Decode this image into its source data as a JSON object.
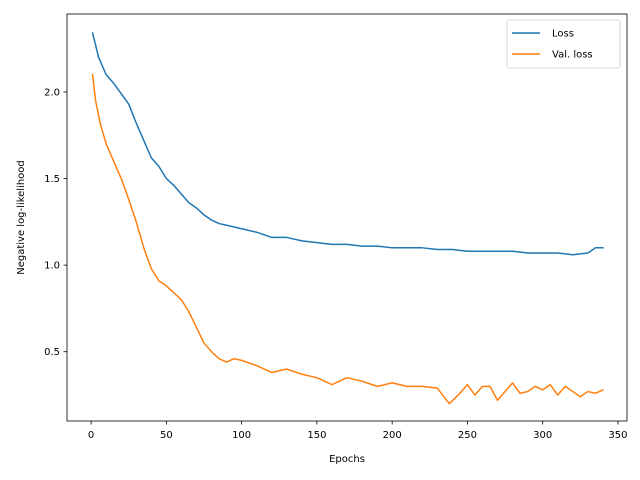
{
  "chart_data": {
    "type": "line",
    "title": "",
    "xlabel": "Epochs",
    "ylabel": "Negative log-likelihood",
    "xlim": [
      -16,
      356
    ],
    "ylim": [
      0.1,
      2.45
    ],
    "xticks": [
      0,
      50,
      100,
      150,
      200,
      250,
      300,
      350
    ],
    "xtick_labels": [
      "0",
      "50",
      "100",
      "150",
      "200",
      "250",
      "300",
      "350"
    ],
    "yticks": [
      0.5,
      1.0,
      1.5,
      2.0
    ],
    "ytick_labels": [
      "0.5",
      "1.0",
      "1.5",
      "2.0"
    ],
    "grid": false,
    "legend_position": "top-right",
    "series": [
      {
        "name": "Loss",
        "color": "#1f77b4",
        "x": [
          1,
          5,
          10,
          15,
          20,
          25,
          30,
          35,
          40,
          45,
          50,
          55,
          60,
          65,
          70,
          75,
          80,
          85,
          90,
          95,
          100,
          110,
          120,
          130,
          140,
          150,
          160,
          170,
          180,
          190,
          200,
          210,
          220,
          230,
          240,
          250,
          260,
          270,
          280,
          290,
          300,
          310,
          320,
          330,
          335,
          340
        ],
        "y": [
          2.34,
          2.2,
          2.1,
          2.05,
          1.99,
          1.93,
          1.82,
          1.72,
          1.62,
          1.57,
          1.5,
          1.46,
          1.41,
          1.36,
          1.33,
          1.29,
          1.26,
          1.24,
          1.23,
          1.22,
          1.21,
          1.19,
          1.16,
          1.16,
          1.14,
          1.13,
          1.12,
          1.12,
          1.11,
          1.11,
          1.1,
          1.1,
          1.1,
          1.09,
          1.09,
          1.08,
          1.08,
          1.08,
          1.08,
          1.07,
          1.07,
          1.07,
          1.06,
          1.07,
          1.1,
          1.1
        ]
      },
      {
        "name": "Val. loss",
        "color": "#ff7f0e",
        "x": [
          1,
          3,
          6,
          10,
          15,
          20,
          25,
          30,
          35,
          40,
          45,
          50,
          55,
          60,
          65,
          70,
          75,
          80,
          85,
          90,
          95,
          100,
          110,
          120,
          130,
          140,
          150,
          160,
          170,
          180,
          190,
          200,
          210,
          220,
          230,
          238,
          245,
          250,
          255,
          260,
          265,
          270,
          275,
          280,
          285,
          290,
          295,
          300,
          305,
          310,
          315,
          320,
          325,
          330,
          335,
          340
        ],
        "y": [
          2.1,
          1.95,
          1.82,
          1.7,
          1.6,
          1.5,
          1.38,
          1.25,
          1.1,
          0.98,
          0.91,
          0.88,
          0.84,
          0.8,
          0.73,
          0.64,
          0.55,
          0.5,
          0.46,
          0.44,
          0.46,
          0.45,
          0.42,
          0.38,
          0.4,
          0.37,
          0.35,
          0.31,
          0.35,
          0.33,
          0.3,
          0.32,
          0.3,
          0.3,
          0.29,
          0.2,
          0.26,
          0.31,
          0.25,
          0.3,
          0.3,
          0.22,
          0.27,
          0.32,
          0.26,
          0.27,
          0.3,
          0.28,
          0.31,
          0.25,
          0.3,
          0.27,
          0.24,
          0.27,
          0.26,
          0.28
        ]
      }
    ]
  }
}
